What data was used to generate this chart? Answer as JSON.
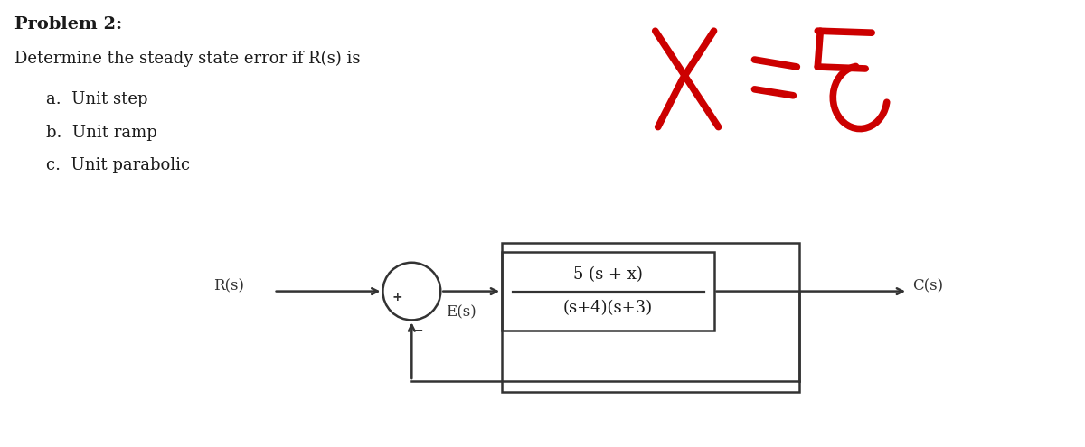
{
  "bg_color": "#ffffff",
  "title_text": "Problem 2:",
  "subtitle_text": "Determine the steady state error if R(s) is",
  "items": [
    "a.  Unit step",
    "b.  Unit ramp",
    "c.  Unit parabolic"
  ],
  "tf_numerator": "5 (s + x)",
  "tf_denominator": "(s+4)(s+3)",
  "label_Rs": "R(s)",
  "label_Es": "E(s)",
  "label_Cs": "C(s)",
  "plus_sign": "+",
  "minus_sign": "−",
  "title_fontsize": 14,
  "subtitle_fontsize": 13,
  "item_fontsize": 13,
  "label_fontsize": 12,
  "tf_fontsize": 13,
  "handwritten_color": "#cc0000",
  "text_color": "#1a1a1a",
  "diagram_color": "#333333",
  "handwritten_lw": 5.5,
  "diagram_lw": 1.8
}
